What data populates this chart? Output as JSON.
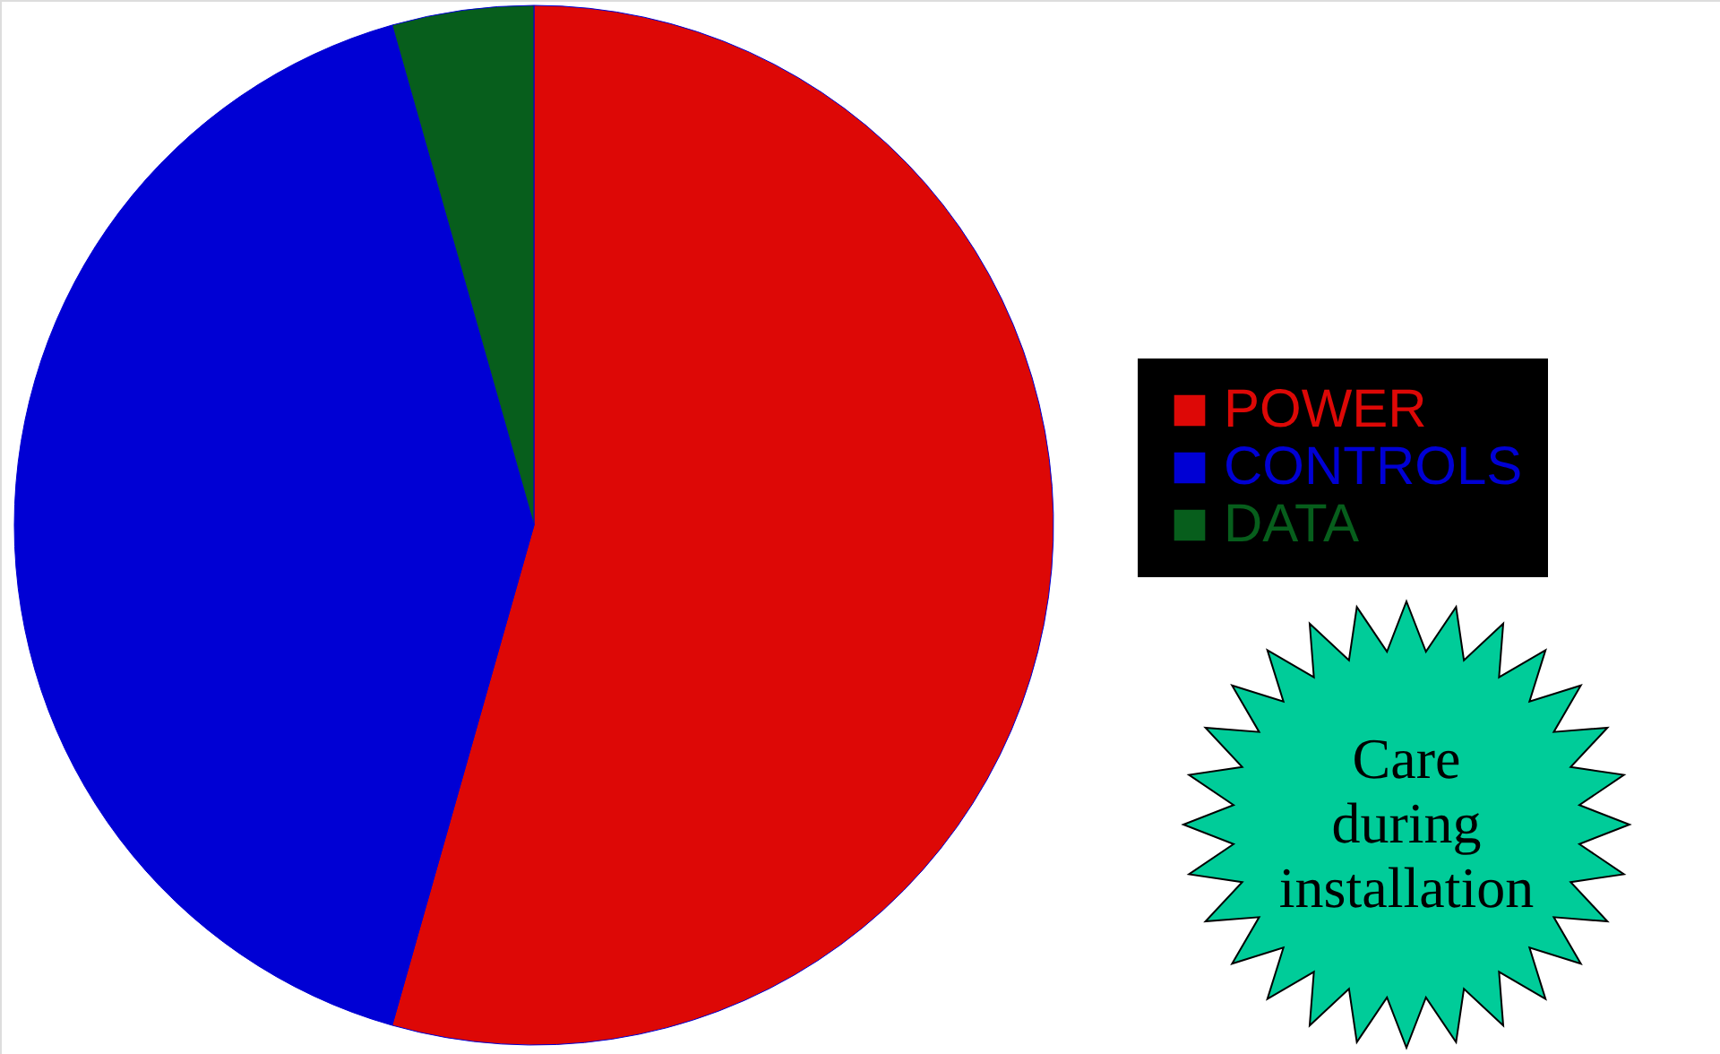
{
  "chart_data": {
    "type": "pie",
    "categories": [
      "POWER",
      "CONTROLS",
      "DATA"
    ],
    "values": [
      54.4,
      41.2,
      4.4
    ],
    "colors": [
      "#dd0806",
      "#0000d4",
      "#075e1c"
    ],
    "legend": "right",
    "annotations": [
      "Care during installation"
    ]
  }
}
